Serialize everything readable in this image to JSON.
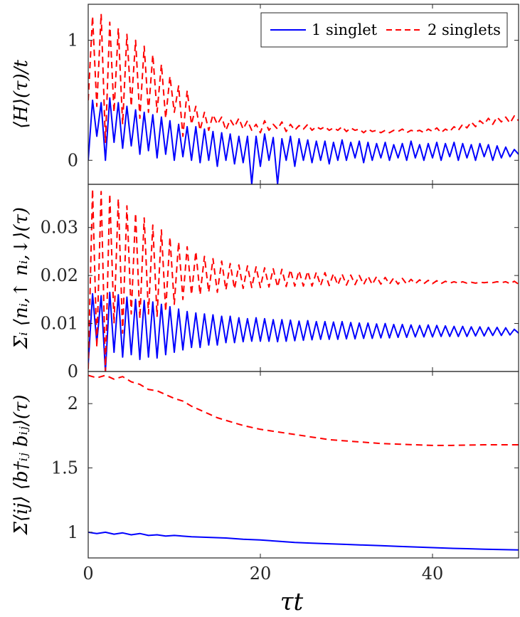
{
  "colors": {
    "blue": "#0000ff",
    "red": "#ff0000",
    "axis": "#262626"
  },
  "xlabel": "τt",
  "legend": {
    "position": "top-right",
    "entries": [
      "1 singlet",
      "2 singlets"
    ]
  },
  "chart_data": [
    {
      "type": "line",
      "ylabel": "⟨H⟩(τ)/t",
      "xlim": [
        0,
        50
      ],
      "ylim": [
        -0.2,
        1.3
      ],
      "yticks": [
        0,
        1
      ],
      "xticks": [
        0,
        20,
        40
      ],
      "series": [
        {
          "name": "1 singlet",
          "style": "solid",
          "x": [
            0,
            0.5,
            1,
            1.5,
            2,
            2.5,
            3,
            3.5,
            4,
            4.5,
            5,
            5.5,
            6,
            6.5,
            7,
            7.5,
            8,
            8.5,
            9,
            9.5,
            10,
            10.5,
            11,
            11.5,
            12,
            12.5,
            13,
            13.5,
            14,
            14.5,
            15,
            15.5,
            16,
            16.5,
            17,
            17.5,
            18,
            18.5,
            19,
            19.5,
            20,
            20.5,
            21,
            21.5,
            22,
            22.5,
            23,
            23.5,
            24,
            24.5,
            25,
            25.5,
            26,
            26.5,
            27,
            27.5,
            28,
            28.5,
            29,
            29.5,
            30,
            30.5,
            31,
            31.5,
            32,
            32.5,
            33,
            33.5,
            34,
            34.5,
            35,
            35.5,
            36,
            36.5,
            37,
            37.5,
            38,
            38.5,
            39,
            39.5,
            40,
            40.5,
            41,
            41.5,
            42,
            42.5,
            43,
            43.5,
            44,
            44.5,
            45,
            45.5,
            46,
            46.5,
            47,
            47.5,
            48,
            48.5,
            49,
            49.5,
            50
          ],
          "y": [
            0.0,
            0.5,
            0.2,
            0.48,
            0.0,
            0.52,
            0.15,
            0.48,
            0.1,
            0.45,
            0.12,
            0.42,
            0.05,
            0.4,
            0.08,
            0.38,
            0.02,
            0.36,
            0.05,
            0.33,
            0.0,
            0.3,
            0.03,
            0.28,
            0.0,
            0.28,
            -0.02,
            0.26,
            0.0,
            0.24,
            -0.05,
            0.23,
            0.0,
            0.22,
            -0.03,
            0.2,
            -0.02,
            0.2,
            -0.2,
            0.2,
            -0.05,
            0.22,
            0.0,
            0.19,
            -0.2,
            0.18,
            0.0,
            0.2,
            -0.05,
            0.18,
            0.0,
            0.17,
            -0.02,
            0.16,
            0.0,
            0.16,
            -0.03,
            0.15,
            0.0,
            0.17,
            0.0,
            0.15,
            0.02,
            0.16,
            -0.02,
            0.15,
            0.0,
            0.14,
            0.02,
            0.15,
            0.0,
            0.13,
            0.02,
            0.14,
            0.0,
            0.16,
            0.02,
            0.13,
            0.0,
            0.14,
            0.02,
            0.15,
            0.0,
            0.14,
            0.03,
            0.15,
            0.0,
            0.14,
            0.02,
            0.13,
            0.0,
            0.14,
            0.03,
            0.13,
            0.0,
            0.12,
            0.02,
            0.11,
            0.03,
            0.09,
            0.05
          ]
        },
        {
          "name": "2 singlets",
          "style": "dashed",
          "x": [
            0,
            0.5,
            1,
            1.5,
            2,
            2.5,
            3,
            3.5,
            4,
            4.5,
            5,
            5.5,
            6,
            6.5,
            7,
            7.5,
            8,
            8.5,
            9,
            9.5,
            10,
            10.5,
            11,
            11.5,
            12,
            12.5,
            13,
            13.5,
            14,
            14.5,
            15,
            15.5,
            16,
            16.5,
            17,
            17.5,
            18,
            18.5,
            19,
            19.5,
            20,
            20.5,
            21,
            21.5,
            22,
            22.5,
            23,
            23.5,
            24,
            24.5,
            25,
            25.5,
            26,
            26.5,
            27,
            27.5,
            28,
            28.5,
            29,
            29.5,
            30,
            30.5,
            31,
            31.5,
            32,
            32.5,
            33,
            33.5,
            34,
            34.5,
            35,
            35.5,
            36,
            36.5,
            37,
            37.5,
            38,
            38.5,
            39,
            39.5,
            40,
            40.5,
            41,
            41.5,
            42,
            42.5,
            43,
            43.5,
            44,
            44.5,
            45,
            45.5,
            46,
            46.5,
            47,
            47.5,
            48,
            48.5,
            49,
            49.5,
            50
          ],
          "y": [
            0.5,
            1.2,
            0.45,
            1.22,
            0.15,
            1.15,
            0.4,
            1.1,
            0.3,
            1.05,
            0.45,
            1.0,
            0.35,
            0.95,
            0.4,
            0.88,
            0.4,
            0.8,
            0.35,
            0.7,
            0.4,
            0.62,
            0.2,
            0.58,
            0.3,
            0.45,
            0.25,
            0.4,
            0.25,
            0.38,
            0.3,
            0.36,
            0.25,
            0.34,
            0.28,
            0.35,
            0.26,
            0.33,
            0.25,
            0.3,
            0.23,
            0.33,
            0.25,
            0.3,
            0.26,
            0.32,
            0.24,
            0.3,
            0.25,
            0.29,
            0.26,
            0.3,
            0.25,
            0.28,
            0.26,
            0.28,
            0.25,
            0.27,
            0.25,
            0.28,
            0.24,
            0.27,
            0.25,
            0.26,
            0.23,
            0.26,
            0.24,
            0.25,
            0.23,
            0.25,
            0.23,
            0.25,
            0.24,
            0.26,
            0.23,
            0.25,
            0.24,
            0.25,
            0.23,
            0.26,
            0.24,
            0.27,
            0.23,
            0.26,
            0.24,
            0.28,
            0.25,
            0.3,
            0.27,
            0.32,
            0.28,
            0.33,
            0.3,
            0.35,
            0.3,
            0.36,
            0.32,
            0.36,
            0.31,
            0.37,
            0.33
          ]
        }
      ]
    },
    {
      "type": "line",
      "ylabel": "Σᵢ ⟨nᵢ,↑ nᵢ,↓⟩(τ)",
      "xlim": [
        0,
        50
      ],
      "ylim": [
        0,
        0.039
      ],
      "yticks": [
        0,
        0.01,
        0.02,
        0.03
      ],
      "ytick_labels": [
        "0",
        "0.01",
        "0.02",
        "0.03"
      ],
      "xticks": [
        0,
        20,
        40
      ],
      "series": [
        {
          "name": "1 singlet",
          "style": "solid",
          "x": [
            0,
            0.5,
            1,
            1.5,
            2,
            2.5,
            3,
            3.5,
            4,
            4.5,
            5,
            5.5,
            6,
            6.5,
            7,
            7.5,
            8,
            8.5,
            9,
            9.5,
            10,
            10.5,
            11,
            11.5,
            12,
            12.5,
            13,
            13.5,
            14,
            14.5,
            15,
            15.5,
            16,
            16.5,
            17,
            17.5,
            18,
            18.5,
            19,
            19.5,
            20,
            20.5,
            21,
            21.5,
            22,
            22.5,
            23,
            23.5,
            24,
            24.5,
            25,
            25.5,
            26,
            26.5,
            27,
            27.5,
            28,
            28.5,
            29,
            29.5,
            30,
            30.5,
            31,
            31.5,
            32,
            32.5,
            33,
            33.5,
            34,
            34.5,
            35,
            35.5,
            36,
            36.5,
            37,
            37.5,
            38,
            38.5,
            39,
            39.5,
            40,
            40.5,
            41,
            41.5,
            42,
            42.5,
            43,
            43.5,
            44,
            44.5,
            45,
            45.5,
            46,
            46.5,
            47,
            47.5,
            48,
            48.5,
            49,
            49.5,
            50
          ],
          "y": [
            0.0015,
            0.0162,
            0.006,
            0.0158,
            0.0,
            0.0165,
            0.004,
            0.016,
            0.003,
            0.0155,
            0.0035,
            0.015,
            0.0025,
            0.0148,
            0.003,
            0.0145,
            0.0028,
            0.014,
            0.0035,
            0.0135,
            0.004,
            0.013,
            0.0045,
            0.0125,
            0.005,
            0.0122,
            0.005,
            0.012,
            0.0055,
            0.0118,
            0.0055,
            0.0115,
            0.006,
            0.0115,
            0.006,
            0.0112,
            0.0062,
            0.011,
            0.0063,
            0.0112,
            0.0063,
            0.011,
            0.0063,
            0.0108,
            0.0062,
            0.0108,
            0.0063,
            0.0107,
            0.0064,
            0.0105,
            0.0065,
            0.0106,
            0.0066,
            0.0104,
            0.0067,
            0.0104,
            0.0067,
            0.0103,
            0.0067,
            0.0104,
            0.0068,
            0.0102,
            0.0068,
            0.0101,
            0.0069,
            0.0101,
            0.0069,
            0.0099,
            0.007,
            0.01,
            0.007,
            0.0098,
            0.0071,
            0.0098,
            0.0071,
            0.0097,
            0.0072,
            0.0096,
            0.0072,
            0.0097,
            0.0072,
            0.0096,
            0.0073,
            0.0095,
            0.0073,
            0.0094,
            0.0073,
            0.0094,
            0.0073,
            0.0093,
            0.0074,
            0.0093,
            0.0074,
            0.0092,
            0.0075,
            0.0092,
            0.0075,
            0.0091,
            0.0076,
            0.0088,
            0.008
          ]
        },
        {
          "name": "2 singlets",
          "style": "dashed",
          "x": [
            0,
            0.5,
            1,
            1.5,
            2,
            2.5,
            3,
            3.5,
            4,
            4.5,
            5,
            5.5,
            6,
            6.5,
            7,
            7.5,
            8,
            8.5,
            9,
            9.5,
            10,
            10.5,
            11,
            11.5,
            12,
            12.5,
            13,
            13.5,
            14,
            14.5,
            15,
            15.5,
            16,
            16.5,
            17,
            17.5,
            18,
            18.5,
            19,
            19.5,
            20,
            20.5,
            21,
            21.5,
            22,
            22.5,
            23,
            23.5,
            24,
            24.5,
            25,
            25.5,
            26,
            26.5,
            27,
            27.5,
            28,
            28.5,
            29,
            29.5,
            30,
            30.5,
            31,
            31.5,
            32,
            32.5,
            33,
            33.5,
            34,
            34.5,
            35,
            35.5,
            36,
            36.5,
            37,
            37.5,
            38,
            38.5,
            39,
            39.5,
            40,
            40.5,
            41,
            41.5,
            42,
            42.5,
            43,
            43.5,
            44,
            44.5,
            45,
            45.5,
            46,
            46.5,
            47,
            47.5,
            48,
            48.5,
            49,
            49.5,
            50
          ],
          "y": [
            0.0005,
            0.038,
            0.005,
            0.0375,
            0.0,
            0.037,
            0.01,
            0.036,
            0.008,
            0.0345,
            0.012,
            0.033,
            0.011,
            0.032,
            0.012,
            0.0305,
            0.0115,
            0.0295,
            0.0125,
            0.028,
            0.014,
            0.027,
            0.015,
            0.026,
            0.016,
            0.025,
            0.016,
            0.024,
            0.0165,
            0.0235,
            0.0165,
            0.023,
            0.017,
            0.0225,
            0.0172,
            0.0222,
            0.0173,
            0.022,
            0.0175,
            0.0218,
            0.0175,
            0.0216,
            0.0176,
            0.0214,
            0.0176,
            0.0213,
            0.0177,
            0.0212,
            0.0178,
            0.021,
            0.0178,
            0.0209,
            0.0178,
            0.0207,
            0.0179,
            0.0206,
            0.0179,
            0.0204,
            0.018,
            0.0203,
            0.018,
            0.0201,
            0.0181,
            0.02,
            0.0181,
            0.0199,
            0.0181,
            0.0198,
            0.0182,
            0.0196,
            0.0182,
            0.0195,
            0.0182,
            0.0194,
            0.0182,
            0.0192,
            0.0183,
            0.0191,
            0.0183,
            0.019,
            0.0183,
            0.0189,
            0.0183,
            0.0188,
            0.0184,
            0.0187,
            0.0184,
            0.0187,
            0.0184,
            0.0186,
            0.0184,
            0.0186,
            0.0185,
            0.0186,
            0.0185,
            0.0187,
            0.0185,
            0.0187,
            0.0183,
            0.0188,
            0.0182
          ]
        }
      ]
    },
    {
      "type": "line",
      "ylabel": "Σ⟨ij⟩ ⟨b†ᵢⱼ bᵢⱼ⟩(τ)",
      "xlim": [
        0,
        50
      ],
      "ylim": [
        0.8,
        2.25
      ],
      "yticks": [
        1,
        1.5,
        2
      ],
      "xticks": [
        0,
        20,
        40
      ],
      "xtick_labels": [
        "0",
        "20",
        "40"
      ],
      "series": [
        {
          "name": "1 singlet",
          "style": "solid",
          "x": [
            0,
            1,
            2,
            3,
            4,
            5,
            6,
            7,
            8,
            9,
            10,
            12,
            14,
            16,
            18,
            20,
            22,
            24,
            26,
            28,
            30,
            32,
            34,
            36,
            38,
            40,
            42,
            44,
            46,
            48,
            50
          ],
          "y": [
            1.0,
            0.99,
            1.0,
            0.985,
            0.995,
            0.98,
            0.99,
            0.975,
            0.98,
            0.97,
            0.975,
            0.965,
            0.96,
            0.955,
            0.945,
            0.94,
            0.93,
            0.92,
            0.915,
            0.91,
            0.905,
            0.9,
            0.895,
            0.89,
            0.885,
            0.88,
            0.875,
            0.872,
            0.868,
            0.865,
            0.862
          ]
        },
        {
          "name": "2 singlets",
          "style": "dashed",
          "x": [
            0,
            1,
            2,
            3,
            4,
            5,
            6,
            7,
            8,
            9,
            10,
            11,
            12,
            13,
            14,
            15,
            16,
            18,
            20,
            22,
            24,
            26,
            28,
            30,
            32,
            34,
            36,
            38,
            40,
            42,
            44,
            46,
            48,
            50
          ],
          "y": [
            2.22,
            2.2,
            2.22,
            2.19,
            2.21,
            2.17,
            2.15,
            2.11,
            2.1,
            2.07,
            2.04,
            2.02,
            1.98,
            1.95,
            1.92,
            1.89,
            1.87,
            1.83,
            1.8,
            1.78,
            1.76,
            1.74,
            1.72,
            1.71,
            1.7,
            1.69,
            1.685,
            1.68,
            1.675,
            1.675,
            1.678,
            1.68,
            1.68,
            1.68
          ]
        }
      ]
    }
  ]
}
